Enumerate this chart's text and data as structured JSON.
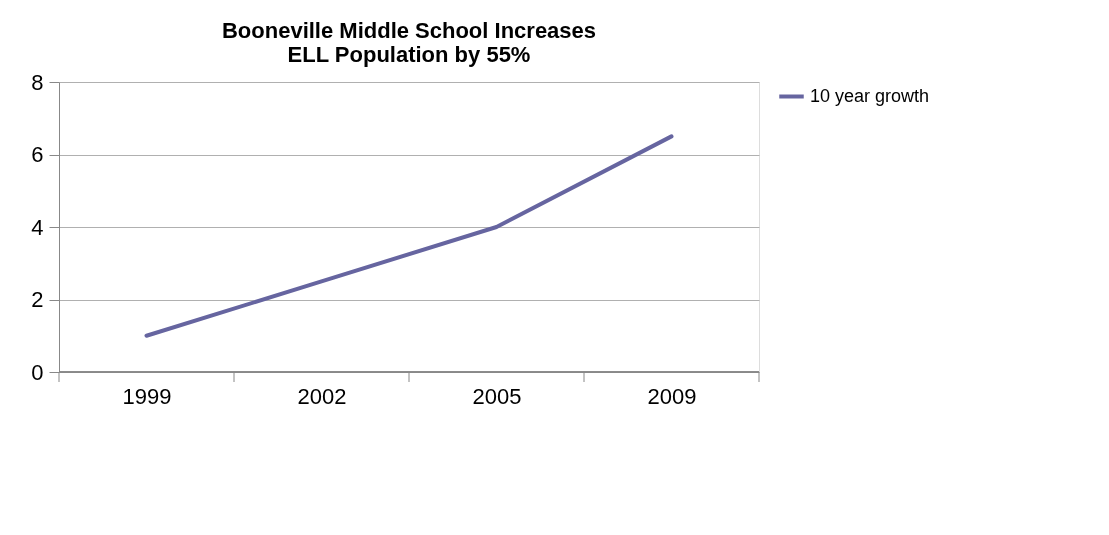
{
  "chart_data": {
    "type": "line",
    "title": [
      "Booneville Middle School Increases",
      "ELL Population by 55%"
    ],
    "categories": [
      "1999",
      "2002",
      "2005",
      "2009"
    ],
    "series": [
      {
        "name": "10 year growth",
        "color": "#6665a0",
        "values": [
          1,
          2.5,
          4,
          6.5
        ]
      }
    ],
    "ylim": [
      0,
      8
    ],
    "yticks": [
      0,
      2,
      4,
      6,
      8
    ],
    "grid": "y",
    "legend": "right",
    "marker": "none",
    "line_style": "solid"
  }
}
